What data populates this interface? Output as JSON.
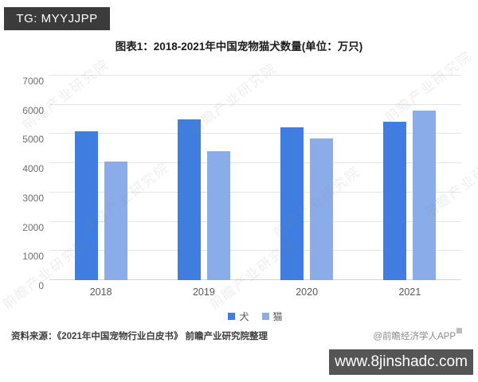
{
  "tag_bar": {
    "label": "TG: MYYJJPP",
    "bg": "#3b3b3b",
    "color": "#ffffff"
  },
  "chart_data": {
    "type": "bar",
    "title": "图表1：2018-2021年中国宠物猫犬数量(单位：万只)",
    "categories": [
      "2018",
      "2019",
      "2020",
      "2021"
    ],
    "series": [
      {
        "name": "犬",
        "color": "#3f7ee0",
        "values": [
          5085,
          5503,
          5222,
          5429
        ]
      },
      {
        "name": "猫",
        "color": "#8aace9",
        "values": [
          4064,
          4412,
          4862,
          5806
        ]
      }
    ],
    "ylim": [
      0,
      7000
    ],
    "ytick_step": 1000,
    "yticks": [
      "0",
      "1000",
      "2000",
      "3000",
      "4000",
      "5000",
      "6000",
      "7000"
    ],
    "grid": true,
    "legend_position": "bottom",
    "unit": "万只"
  },
  "watermark": {
    "text": "前瞻产业研究院"
  },
  "footer": {
    "source": "资料来源：《2021年中国宠物行业白皮书》 前瞻产业研究院整理",
    "credit": "@前瞻经济学人APP",
    "site_bar": {
      "label": "www.8jinshadc.com",
      "bg": "#555555",
      "color": "#ffffff"
    }
  }
}
